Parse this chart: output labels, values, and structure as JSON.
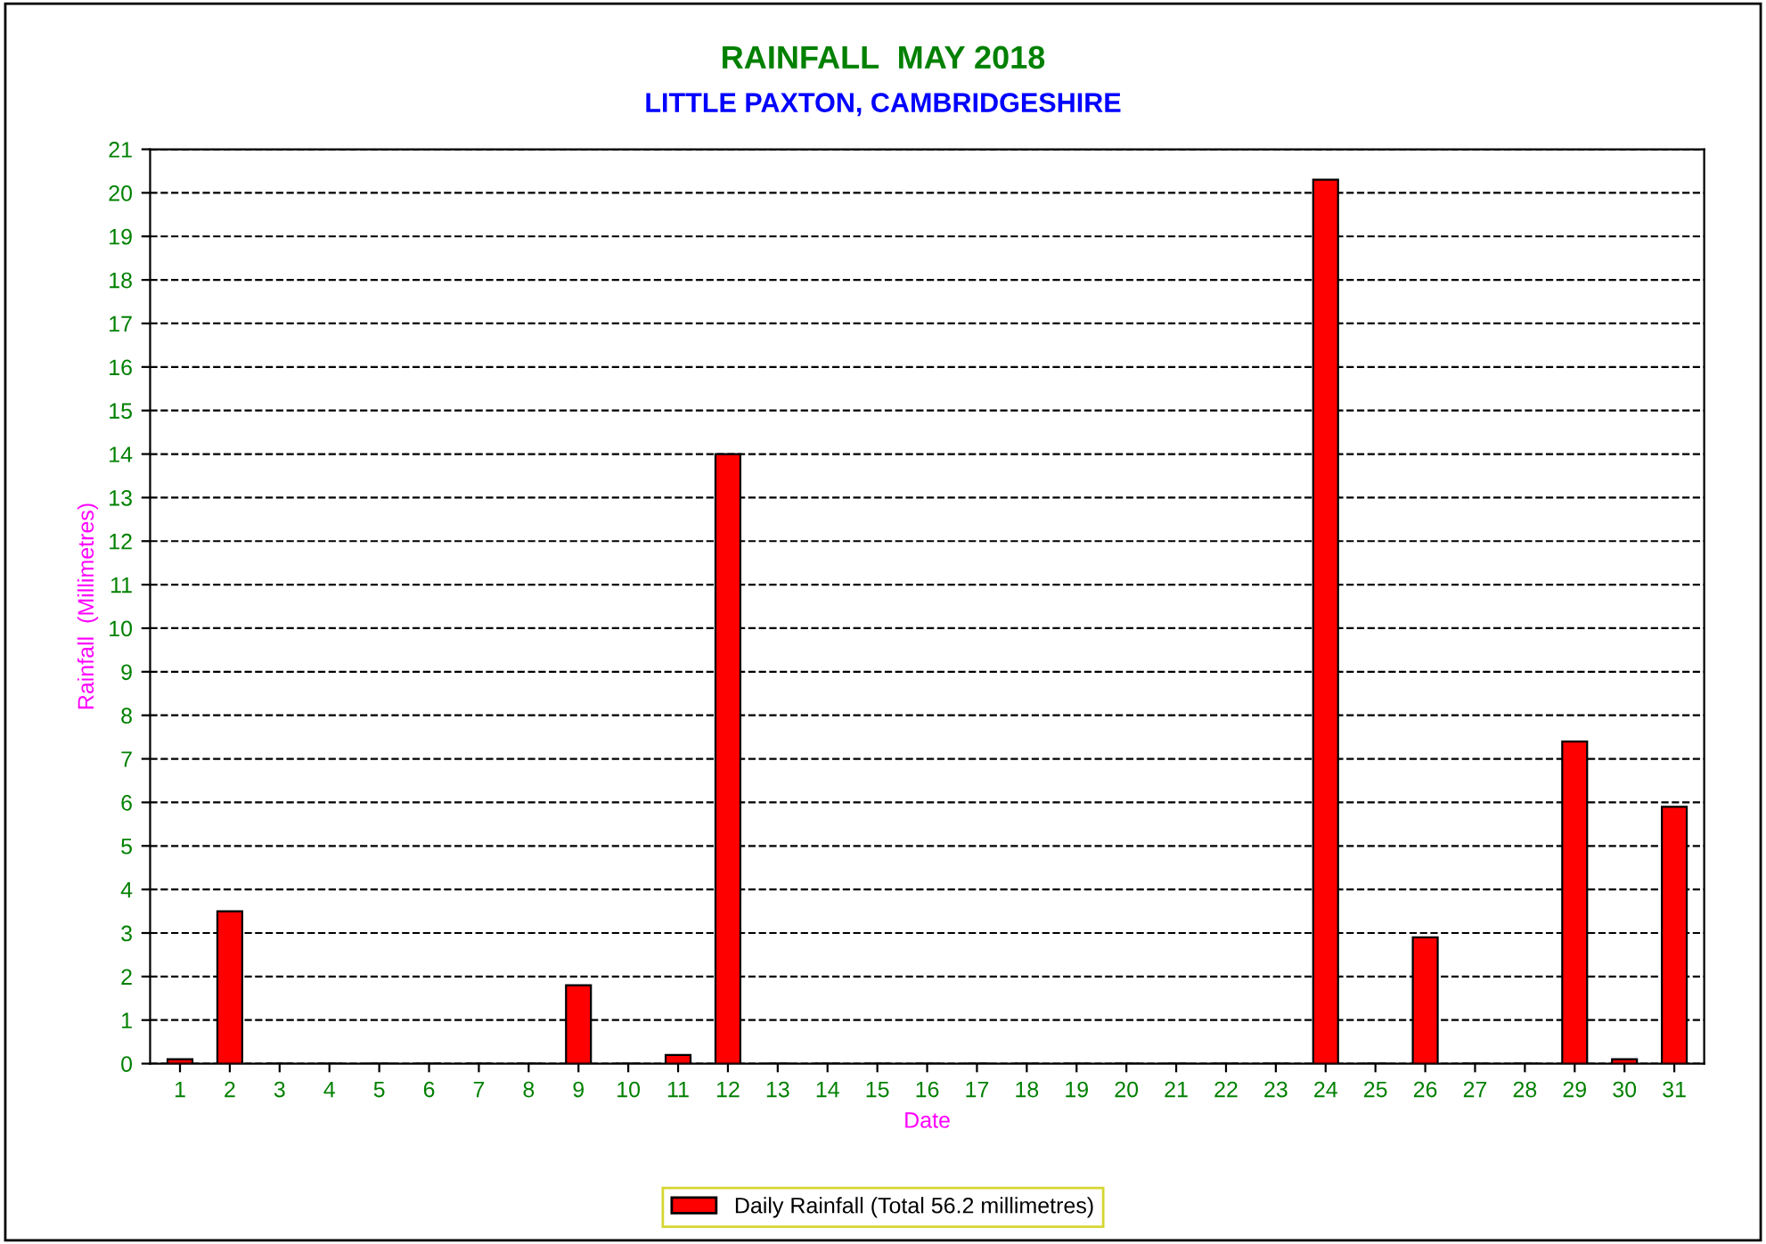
{
  "chart_data": {
    "type": "bar",
    "title": "RAINFALL  MAY 2018",
    "subtitle": "LITTLE PAXTON, CAMBRIDGESHIRE",
    "xlabel": "Date",
    "ylabel": "Rainfall  (Millimetres)",
    "categories": [
      "1",
      "2",
      "3",
      "4",
      "5",
      "6",
      "7",
      "8",
      "9",
      "10",
      "11",
      "12",
      "13",
      "14",
      "15",
      "16",
      "17",
      "18",
      "19",
      "20",
      "21",
      "22",
      "23",
      "24",
      "25",
      "26",
      "27",
      "28",
      "29",
      "30",
      "31"
    ],
    "series": [
      {
        "name": "Daily Rainfall (Total 56.2 millimetres)",
        "color": "#ff0000",
        "values": [
          0.1,
          3.5,
          0,
          0,
          0,
          0,
          0,
          0,
          1.8,
          0,
          0.2,
          14.0,
          0,
          0,
          0,
          0,
          0,
          0,
          0,
          0,
          0,
          0,
          0,
          20.3,
          0,
          2.9,
          0,
          0,
          7.4,
          0.1,
          5.9
        ]
      }
    ],
    "ylim": [
      0,
      21
    ],
    "yticks": [
      0,
      1,
      2,
      3,
      4,
      5,
      6,
      7,
      8,
      9,
      10,
      11,
      12,
      13,
      14,
      15,
      16,
      17,
      18,
      19,
      20,
      21
    ],
    "grid": "y",
    "legend": "bottom"
  }
}
